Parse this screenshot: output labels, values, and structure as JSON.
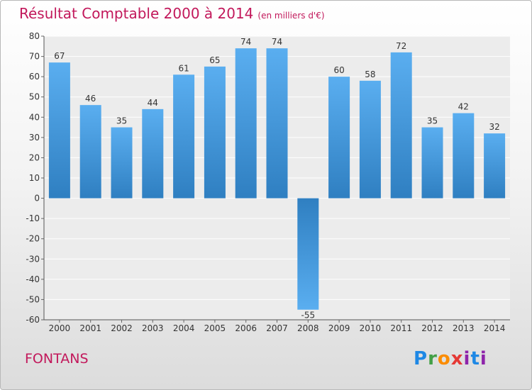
{
  "title": "Résultat Comptable 2000 à 2014",
  "subtitle": "(en milliers d'€)",
  "commune": "FONTANS",
  "logo": {
    "p": "P",
    "r": "r",
    "o": "o",
    "x": "x",
    "i": "i",
    "t": "t",
    "i2": "i"
  },
  "colors": {
    "bar_top": "#5aaef0",
    "bar_bottom": "#2f7fc1",
    "title": "#c2185b"
  },
  "chart_data": {
    "type": "bar",
    "categories": [
      "2000",
      "2001",
      "2002",
      "2003",
      "2004",
      "2005",
      "2006",
      "2007",
      "2008",
      "2009",
      "2010",
      "2011",
      "2012",
      "2013",
      "2014"
    ],
    "values": [
      67,
      46,
      35,
      44,
      61,
      65,
      74,
      74,
      -55,
      60,
      58,
      72,
      35,
      42,
      32
    ],
    "ylim": [
      -60,
      80
    ],
    "yticks": [
      80,
      70,
      60,
      50,
      40,
      30,
      20,
      10,
      0,
      -10,
      -20,
      -30,
      -40,
      -50,
      -60
    ],
    "ytick_labels": [
      "80",
      "70",
      "60",
      "50",
      "40",
      "30",
      "20",
      "10",
      "0",
      "-10",
      "-20",
      "-30",
      "-40",
      "-50",
      "-60"
    ],
    "value_labels": [
      "67",
      "46",
      "35",
      "44",
      "61",
      "65",
      "74",
      "74",
      "-55",
      "60",
      "58",
      "72",
      "35",
      "42",
      "32"
    ],
    "grid": true
  }
}
